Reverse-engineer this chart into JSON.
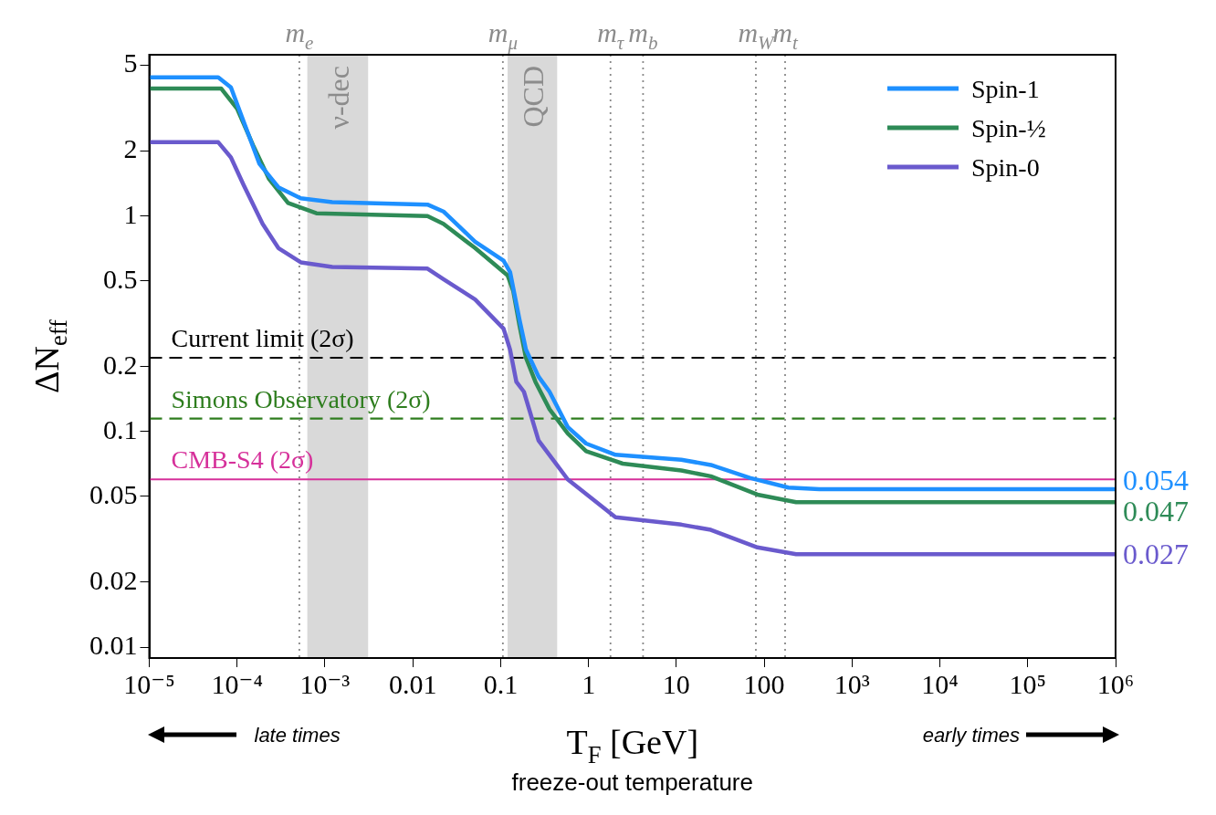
{
  "chart_data": {
    "type": "line",
    "xlabel": "T$_{F}$ [GeV]",
    "ylabel": "ΔN$_{eff}$",
    "log": "xy",
    "grid": false,
    "legend": "top right",
    "marker": "none",
    "line_style": "solid",
    "xlim": [
      1e-05,
      1000000.0
    ],
    "ylim": [
      0.0089,
      5.6
    ],
    "xticks": [
      {
        "value": 1e-05,
        "label": "10⁻⁵"
      },
      {
        "value": 0.0001,
        "label": "10⁻⁴"
      },
      {
        "value": 0.001,
        "label": "10⁻³"
      },
      0.01,
      0.1,
      1,
      10,
      100,
      {
        "value": 1000,
        "label": "10³"
      },
      {
        "value": 10000,
        "label": "10⁴"
      },
      {
        "value": 100000,
        "label": "10⁵"
      },
      {
        "value": 1000000,
        "label": "10⁶"
      }
    ],
    "yticks": [
      0.01,
      0.02,
      0.05,
      0.1,
      0.2,
      0.5,
      1,
      2,
      5
    ],
    "series": [
      {
        "name": "Spin-1",
        "color": "#1e90ff",
        "x": [
          1e-05,
          6.1e-05,
          8.5e-05,
          0.000118,
          0.000179,
          0.000295,
          0.00053,
          0.00121,
          0.0147,
          0.0223,
          0.0512,
          0.108,
          0.128,
          0.164,
          0.194,
          0.27,
          0.36,
          0.58,
          0.94,
          2.03,
          11.4,
          24.7,
          68.6,
          189,
          424,
          1000000
        ],
        "values": [
          4.4,
          4.4,
          3.95,
          2.76,
          1.75,
          1.36,
          1.21,
          1.16,
          1.13,
          1.05,
          0.76,
          0.62,
          0.55,
          0.33,
          0.24,
          0.18,
          0.153,
          0.105,
          0.088,
          0.078,
          0.074,
          0.07,
          0.061,
          0.055,
          0.054,
          0.054
        ],
        "value_labels": [
          null,
          null,
          null,
          null,
          null,
          null,
          null,
          null,
          null,
          null,
          null,
          null,
          null,
          null,
          null,
          null,
          null,
          null,
          null,
          null,
          null,
          null,
          null,
          null,
          null,
          "0.054"
        ]
      },
      {
        "name": "Spin-½",
        "color": "#2e8b57",
        "x": [
          1e-05,
          6.6e-05,
          0.0001,
          0.000152,
          0.00023,
          0.00038,
          0.0008,
          0.0147,
          0.0223,
          0.0512,
          0.12,
          0.139,
          0.164,
          0.194,
          0.249,
          0.36,
          0.58,
          0.94,
          2.45,
          11.4,
          24.7,
          83.8,
          231,
          1000000
        ],
        "values": [
          3.9,
          3.9,
          3.15,
          2.13,
          1.49,
          1.15,
          1.03,
          1.0,
          0.92,
          0.71,
          0.53,
          0.45,
          0.31,
          0.22,
          0.17,
          0.127,
          0.098,
          0.081,
          0.071,
          0.066,
          0.062,
          0.051,
          0.047,
          0.047
        ],
        "value_labels": [
          null,
          null,
          null,
          null,
          null,
          null,
          null,
          null,
          null,
          null,
          null,
          null,
          null,
          null,
          null,
          null,
          null,
          null,
          null,
          null,
          null,
          null,
          null,
          "0.047"
        ]
      },
      {
        "name": "Spin-0",
        "color": "#6a5acd",
        "x": [
          1e-05,
          6.1e-05,
          8.5e-05,
          0.000118,
          0.000195,
          0.000295,
          0.00053,
          0.00121,
          0.0147,
          0.0223,
          0.0512,
          0.108,
          0.128,
          0.151,
          0.184,
          0.27,
          0.58,
          2.03,
          11.4,
          24.7,
          83.8,
          231,
          1000000
        ],
        "values": [
          2.2,
          2.2,
          1.87,
          1.4,
          0.92,
          0.71,
          0.61,
          0.58,
          0.57,
          0.51,
          0.41,
          0.3,
          0.24,
          0.17,
          0.153,
          0.091,
          0.06,
          0.04,
          0.037,
          0.035,
          0.029,
          0.027,
          0.027
        ],
        "value_labels": [
          null,
          null,
          null,
          null,
          null,
          null,
          null,
          null,
          null,
          null,
          null,
          null,
          null,
          null,
          null,
          null,
          null,
          null,
          null,
          null,
          null,
          null,
          "0.027"
        ]
      }
    ],
    "ref_lines": [
      {
        "axis": "y",
        "value": 0.22,
        "label": "Current limit (2σ)",
        "color": "#000000",
        "line_style": "dashed"
      },
      {
        "axis": "y",
        "value": 0.115,
        "label": "Simons Observatory (2σ)",
        "color": "#2e7d1e",
        "line_style": "dashed"
      },
      {
        "axis": "y",
        "value": 0.06,
        "label": "CMB-S4 (2σ)",
        "color": "#d6309a",
        "line_style": "solid"
      },
      {
        "axis": "x",
        "value": 0.000511,
        "label": "m$_{e}$",
        "color": "#888888",
        "line_style": "dotted"
      },
      {
        "axis": "x",
        "value": 0.106,
        "label": "m$_{μ}$",
        "color": "#888888",
        "line_style": "dotted"
      },
      {
        "axis": "x",
        "value": 1.78,
        "label": "m$_{τ}$",
        "color": "#888888",
        "line_style": "dotted"
      },
      {
        "axis": "x",
        "value": 4.18,
        "label": "m$_{b}$",
        "color": "#888888",
        "line_style": "dotted"
      },
      {
        "axis": "x",
        "value": 80.4,
        "label": "m$_{W}$",
        "color": "#888888",
        "line_style": "dotted"
      },
      {
        "axis": "x",
        "value": 173,
        "label": "m$_{t}$",
        "color": "#888888",
        "line_style": "dotted"
      }
    ],
    "bands": [
      {
        "axis": "x",
        "from": 0.00063,
        "to": 0.0031,
        "label": "ν-dec",
        "color": "#d9d9d9"
      },
      {
        "axis": "x",
        "from": 0.12,
        "to": 0.44,
        "label": "QCD",
        "color": "#d9d9d9"
      }
    ],
    "annotations": [
      "late times",
      "early times",
      "freeze-out temperature"
    ]
  }
}
